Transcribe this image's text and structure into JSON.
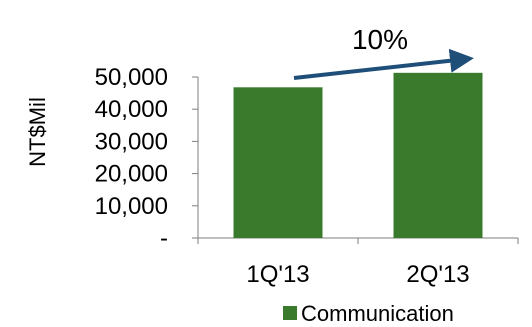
{
  "chart_data": {
    "type": "bar",
    "title": "",
    "xlabel": "",
    "ylabel": "NT$Mil",
    "categories": [
      "1Q'13",
      "2Q'13"
    ],
    "series": [
      {
        "name": "Communication",
        "values": [
          46800,
          51300
        ],
        "color": "#3a7a2c"
      }
    ],
    "ylim": [
      0,
      50000
    ],
    "yticks": [
      0,
      10000,
      20000,
      30000,
      40000,
      50000
    ],
    "ytick_labels": [
      "-",
      "10,000",
      "20,000",
      "30,000",
      "40,000",
      "50,000"
    ],
    "grid": false,
    "legend_position": "bottom",
    "annotation": {
      "text": "10%",
      "arrow_color": "#1f4e79"
    },
    "axis_color": "#7f7f7f"
  }
}
